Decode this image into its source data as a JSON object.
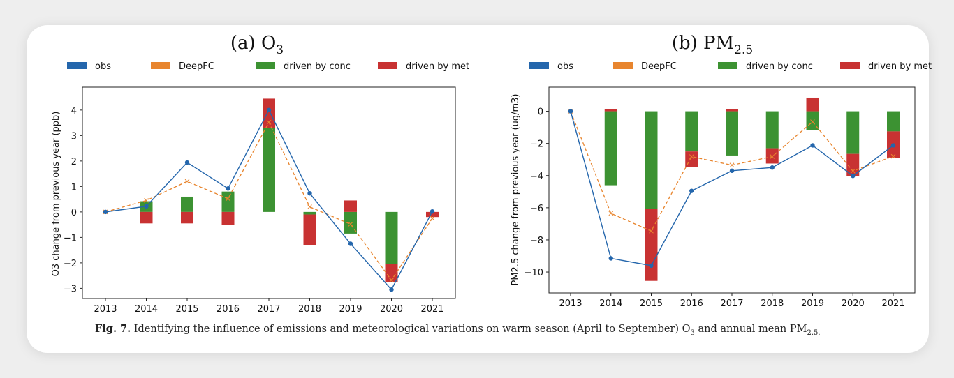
{
  "colors": {
    "obs": "#2466ac",
    "deepfc": "#e8852e",
    "conc": "#3c9232",
    "met": "#c83232"
  },
  "legend": [
    {
      "key": "obs",
      "label": "obs",
      "color": "#2466ac"
    },
    {
      "key": "deepfc",
      "label": "DeepFC",
      "color": "#e8852e"
    },
    {
      "key": "conc",
      "label": "driven by conc",
      "color": "#3c9232"
    },
    {
      "key": "met",
      "label": "driven by met",
      "color": "#c83232"
    }
  ],
  "caption": {
    "label": "Fig. 7.",
    "text": "Identifying the influence of emissions and meteorological variations on warm season (April to September) O",
    "sub1": "3",
    "mid": " and annual mean PM",
    "sub2": "2.5."
  },
  "chart_data": [
    {
      "type": "bar",
      "title_main": "(a) O",
      "title_sub": "3",
      "ylabel": "O3 change from previous year (ppb)",
      "xlabel": "",
      "categories": [
        "2013",
        "2014",
        "2015",
        "2016",
        "2017",
        "2018",
        "2019",
        "2020",
        "2021"
      ],
      "ylim": [
        -3.4,
        4.9
      ],
      "yticks": [
        -3,
        -2,
        -1,
        0,
        1,
        2,
        3,
        4
      ],
      "series": [
        {
          "name": "obs",
          "kind": "line",
          "values": [
            0,
            0.22,
            1.94,
            0.92,
            4.0,
            0.73,
            -1.25,
            -3.05,
            0.02
          ]
        },
        {
          "name": "DeepFC",
          "kind": "dashed-line",
          "values": [
            0,
            0.45,
            1.2,
            0.52,
            3.52,
            0.2,
            -0.48,
            -2.68,
            -0.25
          ]
        },
        {
          "name": "driven by conc",
          "kind": "bar",
          "values": [
            0,
            0.42,
            0.6,
            0.8,
            3.3,
            -0.1,
            -0.85,
            -2.05,
            0
          ]
        },
        {
          "name": "driven by met",
          "kind": "bar",
          "values": [
            0,
            -0.45,
            -0.45,
            -0.5,
            1.15,
            -1.2,
            0.45,
            -0.7,
            -0.2
          ]
        }
      ]
    },
    {
      "type": "bar",
      "title_main": "(b) PM",
      "title_sub": "2.5",
      "ylabel": "PM2.5 change from previous year (ug/m3)",
      "xlabel": "",
      "categories": [
        "2013",
        "2014",
        "2015",
        "2016",
        "2017",
        "2018",
        "2019",
        "2020",
        "2021"
      ],
      "ylim": [
        -11.3,
        1.5
      ],
      "yticks": [
        -10,
        -8,
        -6,
        -4,
        -2,
        0
      ],
      "series": [
        {
          "name": "obs",
          "kind": "line",
          "values": [
            0,
            -9.15,
            -9.6,
            -4.95,
            -3.7,
            -3.5,
            -2.12,
            -4.02,
            -2.12
          ]
        },
        {
          "name": "DeepFC",
          "kind": "dashed-line",
          "values": [
            0,
            -6.35,
            -7.45,
            -2.82,
            -3.35,
            -2.82,
            -0.65,
            -3.72,
            -2.8
          ]
        },
        {
          "name": "driven by conc",
          "kind": "bar",
          "values": [
            0,
            -4.6,
            -6.05,
            -2.5,
            -2.75,
            -2.3,
            -1.15,
            -2.65,
            -1.25
          ]
        },
        {
          "name": "driven by met",
          "kind": "bar",
          "values": [
            0,
            0.15,
            -4.5,
            -0.95,
            0.15,
            -0.95,
            0.85,
            -1.4,
            -1.65
          ]
        }
      ]
    }
  ]
}
